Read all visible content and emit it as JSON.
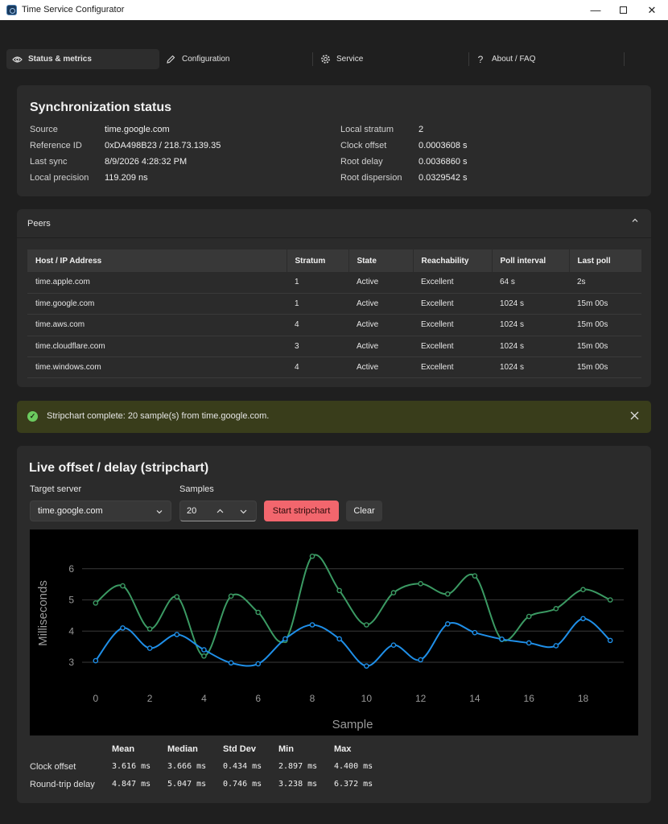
{
  "window": {
    "title": "Time Service Configurator"
  },
  "tabs": [
    {
      "label": "Status & metrics",
      "icon": "eye-icon"
    },
    {
      "label": "Configuration",
      "icon": "pencil-icon"
    },
    {
      "label": "Service",
      "icon": "gear-icon"
    },
    {
      "label": "About / FAQ",
      "icon": "question-icon"
    }
  ],
  "sync": {
    "heading": "Synchronization status",
    "left": [
      {
        "key": "Source",
        "value": "time.google.com"
      },
      {
        "key": "Reference ID",
        "value": "0xDA498B23 / 218.73.139.35"
      },
      {
        "key": "Last sync",
        "value": "8/9/2026 4:28:32 PM"
      },
      {
        "key": "Local precision",
        "value": "119.209 ns"
      }
    ],
    "right": [
      {
        "key": "Local stratum",
        "value": "2"
      },
      {
        "key": "Clock offset",
        "value": "0.0003608 s"
      },
      {
        "key": "Root delay",
        "value": "0.0036860 s"
      },
      {
        "key": "Root dispersion",
        "value": "0.0329542 s"
      }
    ]
  },
  "peers": {
    "heading": "Peers",
    "columns": [
      "Host / IP Address",
      "Stratum",
      "State",
      "Reachability",
      "Poll interval",
      "Last poll"
    ],
    "rows": [
      [
        "time.apple.com",
        "1",
        "Active",
        "Excellent",
        "64 s",
        "2s"
      ],
      [
        "time.google.com",
        "1",
        "Active",
        "Excellent",
        "1024 s",
        "15m 00s"
      ],
      [
        "time.aws.com",
        "4",
        "Active",
        "Excellent",
        "1024 s",
        "15m 00s"
      ],
      [
        "time.cloudflare.com",
        "3",
        "Active",
        "Excellent",
        "1024 s",
        "15m 00s"
      ],
      [
        "time.windows.com",
        "4",
        "Active",
        "Excellent",
        "1024 s",
        "15m 00s"
      ]
    ]
  },
  "banner": {
    "message": "Stripchart complete: 20 sample(s) from time.google.com."
  },
  "stripchart": {
    "heading": "Live offset / delay (stripchart)",
    "target_label": "Target server",
    "target_value": "time.google.com",
    "samples_label": "Samples",
    "samples_value": "20",
    "start_label": "Start stripchart",
    "clear_label": "Clear"
  },
  "chart_data": {
    "type": "line",
    "title": "",
    "xlabel": "Sample",
    "ylabel": "Milliseconds",
    "xlim": [
      -0.5,
      19.5
    ],
    "ylim": [
      2.2,
      7.0
    ],
    "xticks": [
      0,
      2,
      4,
      6,
      8,
      10,
      12,
      14,
      16,
      18
    ],
    "yticks": [
      3,
      4,
      5,
      6
    ],
    "grid": "horizontal",
    "x": [
      0,
      1,
      2,
      3,
      4,
      5,
      6,
      7,
      8,
      9,
      10,
      11,
      12,
      13,
      14,
      15,
      16,
      17,
      18,
      19
    ],
    "series": [
      {
        "color": "#3b9a63",
        "values": [
          4.9,
          5.45,
          4.07,
          5.1,
          3.2,
          5.12,
          4.6,
          3.7,
          6.4,
          5.3,
          4.2,
          5.23,
          5.52,
          5.19,
          5.77,
          3.73,
          4.47,
          4.72,
          5.33,
          5.0
        ]
      },
      {
        "color": "#1f8fe8",
        "values": [
          3.05,
          4.1,
          3.45,
          3.89,
          3.4,
          2.98,
          2.95,
          3.75,
          4.2,
          3.75,
          2.88,
          3.55,
          3.08,
          4.23,
          3.95,
          3.74,
          3.62,
          3.53,
          4.4,
          3.7
        ]
      }
    ]
  },
  "stats": {
    "headers": [
      "Mean",
      "Median",
      "Std Dev",
      "Min",
      "Max"
    ],
    "rows": [
      {
        "label": "Clock offset",
        "values": [
          "3.616 ms",
          "3.666 ms",
          "0.434 ms",
          "2.897 ms",
          "4.400 ms"
        ]
      },
      {
        "label": "Round-trip delay",
        "values": [
          "4.847 ms",
          "5.047 ms",
          "0.746 ms",
          "3.238 ms",
          "6.372 ms"
        ]
      }
    ]
  }
}
